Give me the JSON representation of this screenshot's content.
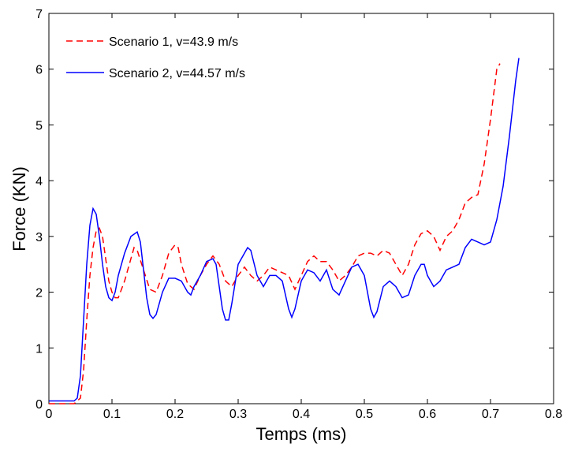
{
  "chart_data": {
    "type": "line",
    "xlabel": "Temps (ms)",
    "ylabel": "Force (KN)",
    "xlim": [
      0,
      0.8
    ],
    "ylim": [
      0,
      7
    ],
    "xticks": [
      0,
      0.1,
      0.2,
      0.3,
      0.4,
      0.5,
      0.6,
      0.7,
      0.8
    ],
    "yticks": [
      0,
      1,
      2,
      3,
      4,
      5,
      6,
      7
    ],
    "legend": "upper left",
    "series": [
      {
        "name": "Scenario 1, v=43.9 m/s",
        "color": "#ff0000",
        "linestyle": "dashed",
        "x": [
          0,
          0.04,
          0.05,
          0.055,
          0.06,
          0.065,
          0.07,
          0.075,
          0.08,
          0.085,
          0.09,
          0.095,
          0.1,
          0.105,
          0.11,
          0.12,
          0.13,
          0.135,
          0.14,
          0.15,
          0.16,
          0.17,
          0.18,
          0.19,
          0.2,
          0.205,
          0.21,
          0.22,
          0.23,
          0.24,
          0.25,
          0.26,
          0.27,
          0.28,
          0.29,
          0.3,
          0.31,
          0.32,
          0.33,
          0.34,
          0.35,
          0.36,
          0.37,
          0.38,
          0.39,
          0.4,
          0.41,
          0.42,
          0.43,
          0.44,
          0.45,
          0.46,
          0.47,
          0.48,
          0.49,
          0.5,
          0.51,
          0.52,
          0.53,
          0.54,
          0.55,
          0.56,
          0.57,
          0.58,
          0.59,
          0.6,
          0.61,
          0.62,
          0.63,
          0.64,
          0.65,
          0.66,
          0.67,
          0.68,
          0.69,
          0.7,
          0.71,
          0.715
        ],
        "values": [
          0,
          0,
          0.1,
          0.6,
          1.5,
          2.3,
          2.8,
          3.1,
          3.15,
          3.0,
          2.6,
          2.2,
          2.0,
          1.9,
          1.9,
          2.2,
          2.6,
          2.8,
          2.75,
          2.4,
          2.05,
          2.0,
          2.3,
          2.7,
          2.85,
          2.8,
          2.5,
          2.15,
          2.05,
          2.3,
          2.5,
          2.65,
          2.5,
          2.2,
          2.1,
          2.3,
          2.45,
          2.3,
          2.2,
          2.3,
          2.45,
          2.4,
          2.35,
          2.3,
          2.05,
          2.3,
          2.55,
          2.65,
          2.55,
          2.55,
          2.4,
          2.2,
          2.3,
          2.45,
          2.65,
          2.7,
          2.7,
          2.65,
          2.75,
          2.7,
          2.5,
          2.3,
          2.5,
          2.85,
          3.05,
          3.1,
          3.0,
          2.75,
          3.0,
          3.1,
          3.3,
          3.6,
          3.7,
          3.75,
          4.3,
          5.1,
          6.0,
          6.1
        ]
      },
      {
        "name": "Scenario 2, v=44.57 m/s",
        "color": "#0000ff",
        "linestyle": "solid",
        "x": [
          0,
          0.04,
          0.045,
          0.05,
          0.055,
          0.06,
          0.065,
          0.07,
          0.075,
          0.08,
          0.085,
          0.09,
          0.095,
          0.1,
          0.105,
          0.11,
          0.12,
          0.13,
          0.14,
          0.145,
          0.15,
          0.155,
          0.16,
          0.165,
          0.17,
          0.18,
          0.19,
          0.2,
          0.21,
          0.22,
          0.225,
          0.23,
          0.24,
          0.25,
          0.26,
          0.265,
          0.27,
          0.275,
          0.28,
          0.285,
          0.29,
          0.3,
          0.31,
          0.315,
          0.32,
          0.33,
          0.34,
          0.35,
          0.36,
          0.37,
          0.38,
          0.385,
          0.39,
          0.4,
          0.41,
          0.42,
          0.43,
          0.44,
          0.45,
          0.46,
          0.47,
          0.48,
          0.49,
          0.5,
          0.505,
          0.51,
          0.515,
          0.52,
          0.53,
          0.54,
          0.55,
          0.56,
          0.57,
          0.58,
          0.59,
          0.595,
          0.6,
          0.61,
          0.62,
          0.63,
          0.64,
          0.65,
          0.66,
          0.67,
          0.68,
          0.69,
          0.7,
          0.71,
          0.72,
          0.73,
          0.74,
          0.745
        ],
        "values": [
          0.05,
          0.05,
          0.1,
          0.5,
          1.5,
          2.5,
          3.2,
          3.5,
          3.4,
          3.0,
          2.5,
          2.1,
          1.9,
          1.85,
          2.0,
          2.3,
          2.7,
          3.0,
          3.08,
          2.9,
          2.4,
          1.9,
          1.6,
          1.53,
          1.6,
          2.0,
          2.25,
          2.25,
          2.2,
          2.0,
          1.95,
          2.1,
          2.3,
          2.55,
          2.6,
          2.5,
          2.1,
          1.7,
          1.5,
          1.5,
          1.8,
          2.5,
          2.7,
          2.8,
          2.75,
          2.3,
          2.1,
          2.3,
          2.3,
          2.2,
          1.7,
          1.55,
          1.7,
          2.2,
          2.4,
          2.35,
          2.2,
          2.4,
          2.05,
          1.95,
          2.2,
          2.45,
          2.5,
          2.3,
          2.0,
          1.7,
          1.55,
          1.65,
          2.1,
          2.2,
          2.1,
          1.9,
          1.95,
          2.3,
          2.5,
          2.5,
          2.3,
          2.1,
          2.2,
          2.4,
          2.45,
          2.5,
          2.8,
          2.95,
          2.9,
          2.85,
          2.9,
          3.3,
          3.9,
          4.8,
          5.8,
          6.2
        ]
      }
    ]
  }
}
